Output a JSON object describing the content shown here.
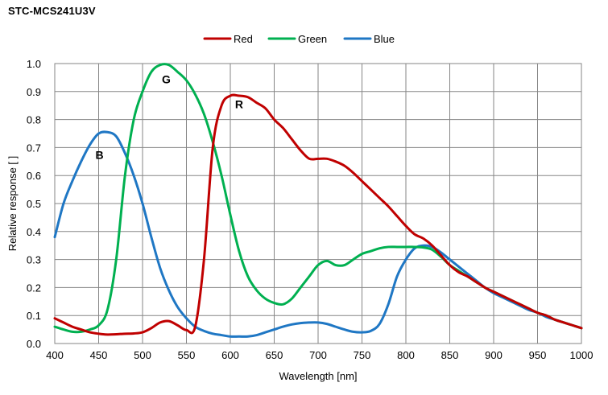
{
  "header": {
    "title": "STC-MCS241U3V"
  },
  "colors": {
    "red": "#c00000",
    "green": "#00b050",
    "blue": "#1f77c4",
    "grid": "#868686",
    "plot_bg": "#ffffff"
  },
  "chart_data": {
    "type": "line",
    "title": "STC-MCS241U3V",
    "xlabel": "Wavelength [nm]",
    "ylabel": "Relative response [ ]",
    "xlim": [
      400,
      1000
    ],
    "ylim": [
      0,
      1.0
    ],
    "xticks": [
      400,
      450,
      500,
      550,
      600,
      650,
      700,
      750,
      800,
      850,
      900,
      950,
      1000
    ],
    "yticks": [
      0.0,
      0.1,
      0.2,
      0.3,
      0.4,
      0.5,
      0.6,
      0.7,
      0.8,
      0.9,
      1.0
    ],
    "ytick_labels": [
      "0.0",
      "0.1",
      "0.2",
      "0.3",
      "0.4",
      "0.5",
      "0.6",
      "0.7",
      "0.8",
      "0.9",
      "1.0"
    ],
    "grid": true,
    "legend_position": "top",
    "series": [
      {
        "name": "Red",
        "color": "#c00000",
        "annotation": "R",
        "x": [
          400,
          410,
          420,
          430,
          440,
          450,
          460,
          470,
          480,
          490,
          500,
          510,
          520,
          530,
          540,
          550,
          560,
          570,
          580,
          590,
          600,
          610,
          620,
          630,
          640,
          650,
          660,
          670,
          680,
          690,
          700,
          710,
          720,
          730,
          740,
          750,
          760,
          770,
          780,
          790,
          800,
          810,
          820,
          830,
          840,
          850,
          860,
          870,
          880,
          890,
          900,
          910,
          920,
          930,
          940,
          950,
          960,
          970,
          980,
          990,
          1000
        ],
        "y": [
          0.09,
          0.075,
          0.06,
          0.05,
          0.04,
          0.035,
          0.032,
          0.033,
          0.035,
          0.036,
          0.04,
          0.055,
          0.075,
          0.08,
          0.065,
          0.048,
          0.06,
          0.3,
          0.7,
          0.85,
          0.885,
          0.885,
          0.88,
          0.86,
          0.84,
          0.8,
          0.77,
          0.73,
          0.69,
          0.66,
          0.66,
          0.66,
          0.65,
          0.635,
          0.61,
          0.58,
          0.55,
          0.52,
          0.49,
          0.455,
          0.42,
          0.39,
          0.375,
          0.35,
          0.315,
          0.28,
          0.255,
          0.24,
          0.22,
          0.2,
          0.185,
          0.17,
          0.155,
          0.14,
          0.125,
          0.11,
          0.1,
          0.085,
          0.075,
          0.065,
          0.055
        ]
      },
      {
        "name": "Green",
        "color": "#00b050",
        "annotation": "G",
        "x": [
          400,
          410,
          420,
          430,
          440,
          450,
          460,
          470,
          480,
          490,
          500,
          510,
          520,
          530,
          540,
          550,
          560,
          570,
          580,
          590,
          600,
          610,
          620,
          630,
          640,
          650,
          660,
          670,
          680,
          690,
          700,
          710,
          720,
          730,
          740,
          750,
          760,
          770,
          780,
          790,
          800,
          810,
          820,
          830,
          840,
          850,
          860,
          870,
          880,
          890,
          900,
          910,
          920,
          930,
          940,
          950,
          960,
          970,
          980,
          990,
          1000
        ],
        "y": [
          0.06,
          0.05,
          0.042,
          0.042,
          0.05,
          0.065,
          0.12,
          0.3,
          0.6,
          0.8,
          0.9,
          0.97,
          0.995,
          0.995,
          0.97,
          0.94,
          0.89,
          0.82,
          0.72,
          0.6,
          0.46,
          0.33,
          0.24,
          0.19,
          0.16,
          0.145,
          0.14,
          0.16,
          0.2,
          0.24,
          0.28,
          0.295,
          0.28,
          0.28,
          0.3,
          0.32,
          0.33,
          0.34,
          0.345,
          0.345,
          0.345,
          0.345,
          0.343,
          0.335,
          0.31,
          0.28,
          0.26,
          0.24,
          0.22,
          0.2,
          0.185,
          0.17,
          0.155,
          0.14,
          0.125,
          0.11,
          0.1,
          0.085,
          0.075,
          0.065,
          0.055
        ]
      },
      {
        "name": "Blue",
        "color": "#1f77c4",
        "annotation": "B",
        "x": [
          400,
          410,
          420,
          430,
          440,
          450,
          460,
          470,
          480,
          490,
          500,
          510,
          520,
          530,
          540,
          550,
          560,
          570,
          580,
          590,
          600,
          610,
          620,
          630,
          640,
          650,
          660,
          670,
          680,
          690,
          700,
          710,
          720,
          730,
          740,
          750,
          760,
          770,
          780,
          790,
          800,
          810,
          820,
          830,
          840,
          850,
          860,
          870,
          880,
          890,
          900,
          910,
          920,
          930,
          940,
          950,
          960,
          970,
          980,
          990,
          1000
        ],
        "y": [
          0.38,
          0.5,
          0.58,
          0.65,
          0.71,
          0.75,
          0.755,
          0.74,
          0.68,
          0.6,
          0.5,
          0.38,
          0.27,
          0.19,
          0.13,
          0.09,
          0.06,
          0.045,
          0.035,
          0.03,
          0.025,
          0.025,
          0.025,
          0.03,
          0.04,
          0.05,
          0.06,
          0.068,
          0.073,
          0.075,
          0.075,
          0.07,
          0.06,
          0.05,
          0.042,
          0.04,
          0.045,
          0.07,
          0.14,
          0.24,
          0.3,
          0.34,
          0.35,
          0.345,
          0.325,
          0.3,
          0.275,
          0.25,
          0.225,
          0.2,
          0.18,
          0.165,
          0.15,
          0.135,
          0.12,
          0.11,
          0.095,
          0.085,
          0.075,
          0.065,
          0.055
        ]
      }
    ]
  }
}
